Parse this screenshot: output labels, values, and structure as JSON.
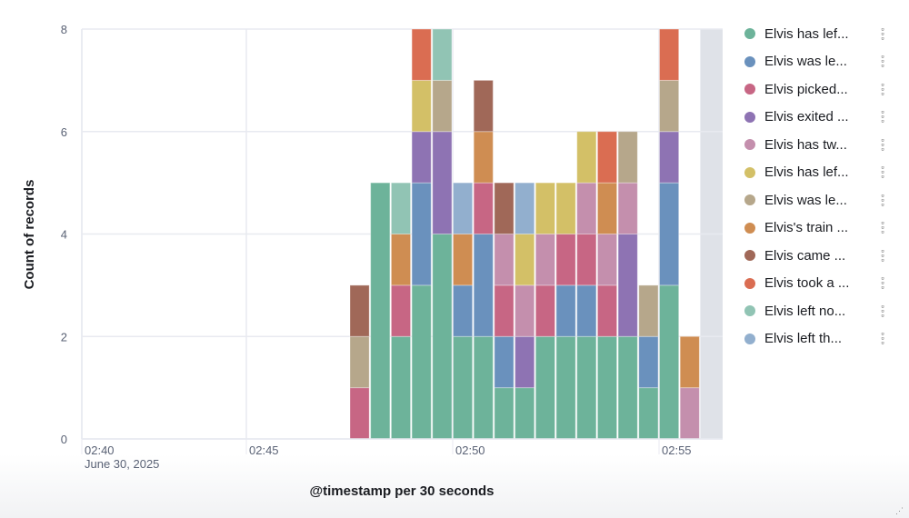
{
  "chart_data": {
    "type": "bar",
    "stacked": true,
    "ylabel": "Count of records",
    "xlabel": "@timestamp per 30 seconds",
    "ylim": [
      0,
      8
    ],
    "yticks": [
      "0",
      "2",
      "4",
      "6",
      "8"
    ],
    "xticks": [
      {
        "label": "02:40",
        "sub": "June 30, 2025"
      },
      {
        "label": "02:45"
      },
      {
        "label": "02:50"
      },
      {
        "label": "02:55"
      }
    ],
    "xrange": [
      "02:41:00",
      "02:56:30"
    ],
    "partial_bucket_from": "02:56:00",
    "grid": true,
    "legend_position": "right",
    "series": [
      {
        "name": "Elvis has lef...",
        "color": "#6DB39A"
      },
      {
        "name": "Elvis was le...",
        "color": "#6A91BD"
      },
      {
        "name": "Elvis picked...",
        "color": "#C76684"
      },
      {
        "name": "Elvis exited ...",
        "color": "#8E73B3"
      },
      {
        "name": "Elvis has tw...",
        "color": "#C48FAD"
      },
      {
        "name": "Elvis has lef...",
        "color": "#D3C067"
      },
      {
        "name": "Elvis was le...",
        "color": "#B6A78B"
      },
      {
        "name": "Elvis's train ...",
        "color": "#CF8D52"
      },
      {
        "name": "Elvis came ...",
        "color": "#A06858"
      },
      {
        "name": "Elvis took a ...",
        "color": "#DA6D52"
      },
      {
        "name": "Elvis left no...",
        "color": "#91C4B4"
      },
      {
        "name": "Elvis left th...",
        "color": "#92AFCE"
      }
    ],
    "buckets": [
      {
        "time": "02:47:30",
        "counts": [
          0,
          0,
          1,
          0,
          0,
          0,
          1,
          0,
          1,
          0,
          0,
          0
        ]
      },
      {
        "time": "02:48:00",
        "counts": [
          5,
          0,
          0,
          0,
          0,
          0,
          0,
          0,
          0,
          0,
          0,
          0
        ]
      },
      {
        "time": "02:48:30",
        "counts": [
          2,
          0,
          1,
          0,
          0,
          0,
          0,
          1,
          0,
          0,
          1,
          0
        ]
      },
      {
        "time": "02:49:00",
        "counts": [
          3,
          2,
          0,
          1,
          0,
          1,
          0,
          0,
          0,
          1,
          0,
          0
        ]
      },
      {
        "time": "02:49:30",
        "counts": [
          4,
          0,
          0,
          2,
          0,
          0,
          1,
          0,
          0,
          0,
          1,
          0
        ]
      },
      {
        "time": "02:50:00",
        "counts": [
          2,
          1,
          0,
          0,
          0,
          0,
          0,
          1,
          0,
          0,
          0,
          1
        ]
      },
      {
        "time": "02:50:30",
        "counts": [
          2,
          2,
          1,
          0,
          0,
          0,
          0,
          1,
          1,
          0,
          0,
          0
        ]
      },
      {
        "time": "02:51:00",
        "counts": [
          1,
          1,
          1,
          0,
          1,
          0,
          0,
          0,
          1,
          0,
          0,
          0
        ]
      },
      {
        "time": "02:51:30",
        "counts": [
          1,
          0,
          0,
          1,
          1,
          1,
          0,
          0,
          0,
          0,
          0,
          1
        ]
      },
      {
        "time": "02:52:00",
        "counts": [
          2,
          0,
          1,
          0,
          1,
          1,
          0,
          0,
          0,
          0,
          0,
          0
        ]
      },
      {
        "time": "02:52:30",
        "counts": [
          2,
          1,
          1,
          0,
          0,
          1,
          0,
          0,
          0,
          0,
          0,
          0
        ]
      },
      {
        "time": "02:53:00",
        "counts": [
          2,
          1,
          1,
          0,
          1,
          1,
          0,
          0,
          0,
          0,
          0,
          0
        ]
      },
      {
        "time": "02:53:30",
        "counts": [
          2,
          0,
          1,
          0,
          1,
          0,
          0,
          1,
          0,
          1,
          0,
          0
        ]
      },
      {
        "time": "02:54:00",
        "counts": [
          2,
          0,
          0,
          2,
          1,
          0,
          1,
          0,
          0,
          0,
          0,
          0
        ]
      },
      {
        "time": "02:54:30",
        "counts": [
          1,
          1,
          0,
          0,
          0,
          0,
          1,
          0,
          0,
          0,
          0,
          0
        ]
      },
      {
        "time": "02:55:00",
        "counts": [
          3,
          2,
          0,
          1,
          0,
          0,
          1,
          0,
          0,
          1,
          0,
          0
        ]
      },
      {
        "time": "02:55:30",
        "counts": [
          0,
          0,
          0,
          0,
          1,
          0,
          0,
          1,
          0,
          0,
          0,
          0
        ]
      }
    ]
  }
}
